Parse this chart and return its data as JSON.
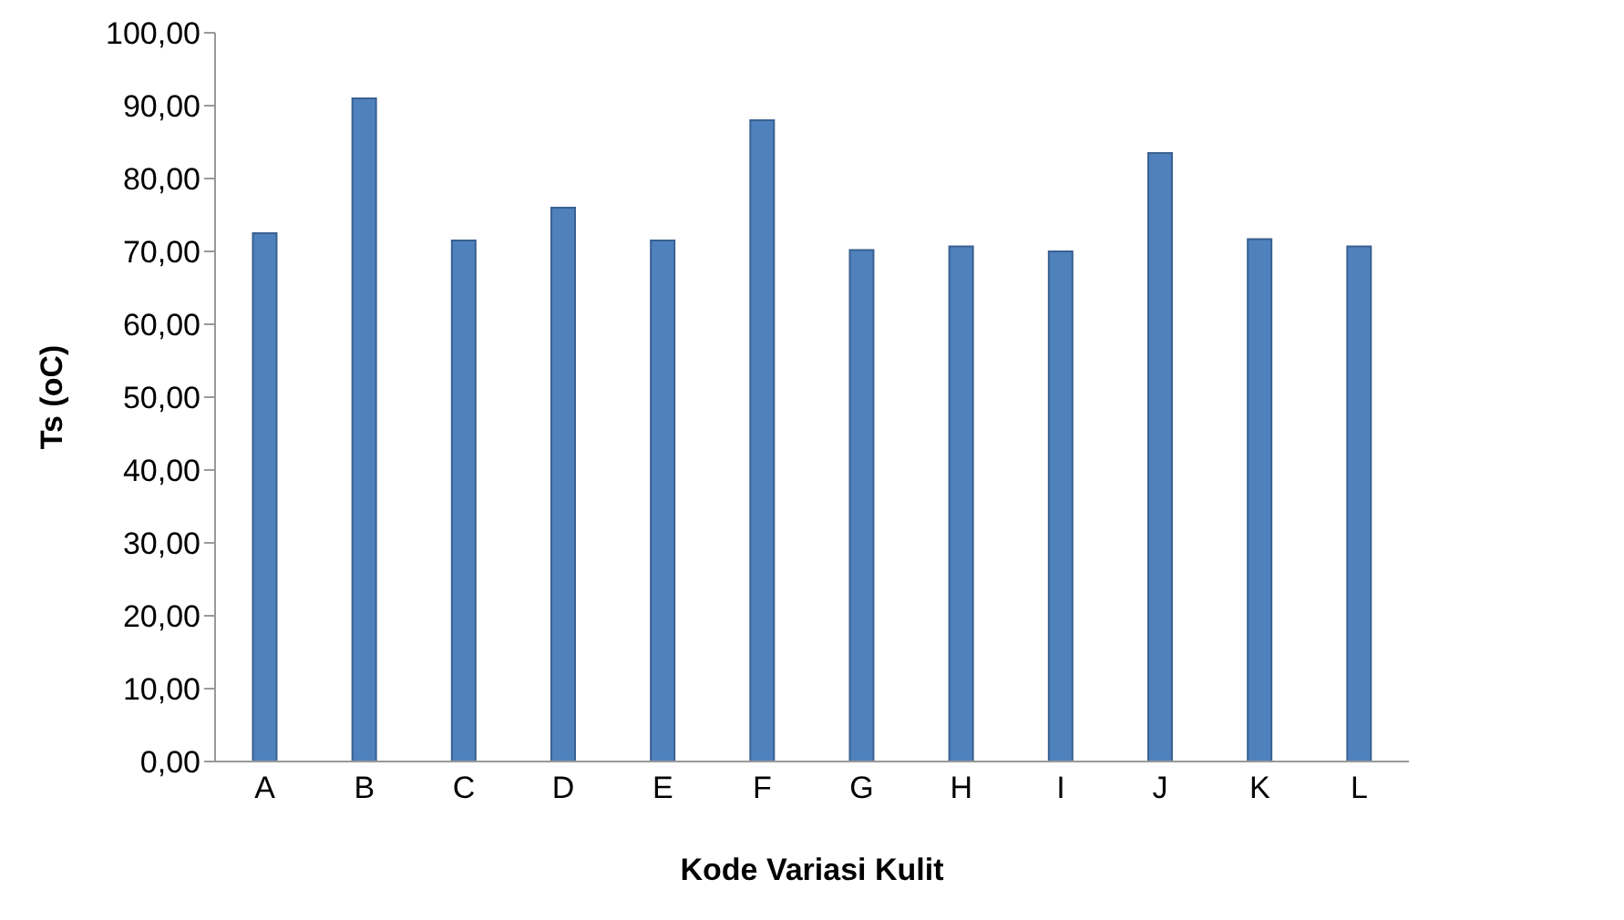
{
  "chart_data": {
    "type": "bar",
    "xlabel": "Kode Variasi Kulit",
    "ylabel": "Ts (oC)",
    "categories": [
      "A",
      "B",
      "C",
      "D",
      "E",
      "F",
      "G",
      "H",
      "I",
      "J",
      "K",
      "L"
    ],
    "series": [
      {
        "color": "#4f81bd",
        "values": [
          72.5,
          91,
          71.5,
          76,
          71.5,
          88,
          70.2,
          70.7,
          70,
          83.5,
          71.7,
          70.7
        ]
      }
    ],
    "ylim": [
      0,
      100
    ],
    "yticks": [
      {
        "value": 0,
        "label": "0,00"
      },
      {
        "value": 10,
        "label": "10,00"
      },
      {
        "value": 20,
        "label": "20,00"
      },
      {
        "value": 30,
        "label": "30,00"
      },
      {
        "value": 40,
        "label": "40,00"
      },
      {
        "value": 50,
        "label": "50,00"
      },
      {
        "value": 60,
        "label": "60,00"
      },
      {
        "value": 70,
        "label": "70,00"
      },
      {
        "value": 80,
        "label": "80,00"
      },
      {
        "value": 90,
        "label": "90,00"
      },
      {
        "value": 100,
        "label": "100,00"
      }
    ],
    "grid": false,
    "legend": false
  }
}
